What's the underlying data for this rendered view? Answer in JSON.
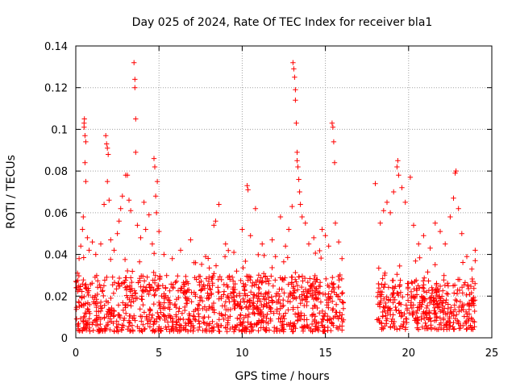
{
  "chart_data": {
    "type": "scatter",
    "title": "Day 025 of 2024, Rate Of TEC Index for receiver bla1",
    "xlabel": "GPS time / hours",
    "ylabel": "ROTI / TECUs",
    "xlim": [
      0,
      25
    ],
    "ylim": [
      0,
      0.14
    ],
    "x_ticks": [
      0,
      5,
      10,
      15,
      20,
      25
    ],
    "x_tick_labels": [
      "0",
      "5",
      "10",
      "15",
      "20",
      "25"
    ],
    "y_ticks": [
      0,
      0.02,
      0.04,
      0.06,
      0.08,
      0.1,
      0.12,
      0.14
    ],
    "y_tick_labels": [
      "0",
      "0.02",
      "0.04",
      "0.06",
      "0.08",
      "0.1",
      "0.12",
      "0.14"
    ],
    "grid": true,
    "marker": "plus",
    "marker_color": "#ff0000",
    "data_gaps_hours": [
      [
        16.1,
        18.1
      ]
    ],
    "series": [
      {
        "points": [
          [
            0.1,
            0.031
          ],
          [
            0.2,
            0.038
          ],
          [
            0.3,
            0.044
          ],
          [
            0.4,
            0.052
          ],
          [
            0.45,
            0.058
          ],
          [
            0.5,
            0.103
          ],
          [
            0.5,
            0.101
          ],
          [
            0.52,
            0.105
          ],
          [
            0.55,
            0.097
          ],
          [
            0.55,
            0.084
          ],
          [
            0.6,
            0.094
          ],
          [
            0.6,
            0.075
          ],
          [
            0.7,
            0.048
          ],
          [
            0.8,
            0.042
          ],
          [
            1.0,
            0.046
          ],
          [
            1.2,
            0.04
          ],
          [
            1.5,
            0.045
          ],
          [
            1.7,
            0.064
          ],
          [
            1.8,
            0.097
          ],
          [
            1.85,
            0.093
          ],
          [
            1.9,
            0.091
          ],
          [
            1.9,
            0.075
          ],
          [
            1.95,
            0.088
          ],
          [
            2.0,
            0.066
          ],
          [
            2.1,
            0.047
          ],
          [
            2.3,
            0.042
          ],
          [
            2.5,
            0.05
          ],
          [
            2.6,
            0.056
          ],
          [
            2.7,
            0.062
          ],
          [
            2.8,
            0.068
          ],
          [
            3.0,
            0.078
          ],
          [
            3.1,
            0.078
          ],
          [
            3.2,
            0.066
          ],
          [
            3.3,
            0.061
          ],
          [
            3.5,
            0.132
          ],
          [
            3.55,
            0.124
          ],
          [
            3.55,
            0.12
          ],
          [
            3.6,
            0.105
          ],
          [
            3.6,
            0.089
          ],
          [
            3.7,
            0.054
          ],
          [
            3.9,
            0.048
          ],
          [
            4.1,
            0.065
          ],
          [
            4.2,
            0.052
          ],
          [
            4.4,
            0.059
          ],
          [
            4.6,
            0.045
          ],
          [
            4.7,
            0.086
          ],
          [
            4.75,
            0.082
          ],
          [
            4.8,
            0.068
          ],
          [
            4.85,
            0.06
          ],
          [
            4.9,
            0.075
          ],
          [
            5.0,
            0.051
          ],
          [
            5.3,
            0.04
          ],
          [
            5.8,
            0.038
          ],
          [
            6.3,
            0.042
          ],
          [
            6.9,
            0.047
          ],
          [
            7.2,
            0.036
          ],
          [
            7.8,
            0.039
          ],
          [
            8.3,
            0.054
          ],
          [
            8.4,
            0.056
          ],
          [
            8.6,
            0.064
          ],
          [
            9.0,
            0.045
          ],
          [
            9.5,
            0.041
          ],
          [
            10.0,
            0.052
          ],
          [
            10.3,
            0.073
          ],
          [
            10.35,
            0.071
          ],
          [
            10.5,
            0.049
          ],
          [
            10.8,
            0.062
          ],
          [
            11.2,
            0.045
          ],
          [
            11.8,
            0.047
          ],
          [
            12.0,
            0.039
          ],
          [
            12.3,
            0.058
          ],
          [
            12.6,
            0.044
          ],
          [
            12.8,
            0.052
          ],
          [
            13.0,
            0.063
          ],
          [
            13.05,
            0.132
          ],
          [
            13.1,
            0.129
          ],
          [
            13.15,
            0.125
          ],
          [
            13.2,
            0.119
          ],
          [
            13.2,
            0.114
          ],
          [
            13.25,
            0.103
          ],
          [
            13.3,
            0.089
          ],
          [
            13.3,
            0.085
          ],
          [
            13.35,
            0.082
          ],
          [
            13.4,
            0.076
          ],
          [
            13.45,
            0.07
          ],
          [
            13.5,
            0.064
          ],
          [
            13.6,
            0.058
          ],
          [
            13.8,
            0.055
          ],
          [
            14.0,
            0.045
          ],
          [
            14.3,
            0.048
          ],
          [
            14.8,
            0.052
          ],
          [
            15.0,
            0.049
          ],
          [
            15.2,
            0.044
          ],
          [
            15.4,
            0.103
          ],
          [
            15.45,
            0.101
          ],
          [
            15.5,
            0.094
          ],
          [
            15.55,
            0.084
          ],
          [
            15.6,
            0.055
          ],
          [
            15.8,
            0.046
          ],
          [
            16.0,
            0.038
          ],
          [
            18.0,
            0.074
          ],
          [
            18.3,
            0.055
          ],
          [
            18.5,
            0.061
          ],
          [
            18.7,
            0.065
          ],
          [
            18.9,
            0.06
          ],
          [
            19.1,
            0.07
          ],
          [
            19.3,
            0.082
          ],
          [
            19.35,
            0.085
          ],
          [
            19.4,
            0.078
          ],
          [
            19.6,
            0.072
          ],
          [
            19.8,
            0.065
          ],
          [
            20.1,
            0.077
          ],
          [
            20.3,
            0.054
          ],
          [
            20.6,
            0.045
          ],
          [
            20.9,
            0.049
          ],
          [
            21.3,
            0.043
          ],
          [
            21.6,
            0.055
          ],
          [
            21.9,
            0.051
          ],
          [
            22.2,
            0.045
          ],
          [
            22.5,
            0.058
          ],
          [
            22.7,
            0.067
          ],
          [
            22.8,
            0.079
          ],
          [
            22.85,
            0.08
          ],
          [
            23.0,
            0.062
          ],
          [
            23.2,
            0.05
          ],
          [
            23.5,
            0.039
          ],
          [
            23.8,
            0.033
          ],
          [
            24.0,
            0.042
          ],
          [
            24.0,
            0.037
          ]
        ],
        "baseline_band": [
          {
            "x_from": 0.0,
            "x_to": 16.1,
            "y_low": 0.003,
            "y_high": 0.03
          },
          {
            "x_from": 18.1,
            "x_to": 24.0,
            "y_low": 0.004,
            "y_high": 0.028
          }
        ]
      }
    ]
  }
}
